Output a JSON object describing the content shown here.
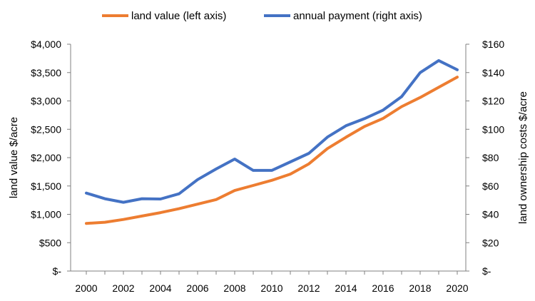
{
  "chart_data": {
    "type": "line",
    "x": [
      2000,
      2001,
      2002,
      2003,
      2004,
      2005,
      2006,
      2007,
      2008,
      2009,
      2010,
      2011,
      2012,
      2013,
      2014,
      2015,
      2016,
      2017,
      2018,
      2019,
      2020
    ],
    "xticks": [
      "2000",
      "2002",
      "2004",
      "2006",
      "2008",
      "2010",
      "2012",
      "2014",
      "2016",
      "2018",
      "2020"
    ],
    "xlim": [
      2000,
      2020
    ],
    "series": [
      {
        "name": "land value (left axis)",
        "axis": "left",
        "color": "#ED7D31",
        "values": [
          840,
          860,
          910,
          970,
          1030,
          1100,
          1180,
          1260,
          1420,
          1510,
          1600,
          1710,
          1890,
          2160,
          2360,
          2550,
          2690,
          2900,
          3060,
          3240,
          3420
        ]
      },
      {
        "name": "annual payment (right axis)",
        "axis": "right",
        "color": "#4472C4",
        "values": [
          55,
          51,
          48.5,
          51,
          50.8,
          54.5,
          64.5,
          72,
          79,
          71,
          71,
          77,
          83,
          94.5,
          102.5,
          107.5,
          113.5,
          123,
          140,
          148.5,
          142
        ]
      }
    ],
    "left_axis": {
      "label": "land value $/acre",
      "ylim": [
        0,
        4000
      ],
      "ticks": [
        0,
        500,
        1000,
        1500,
        2000,
        2500,
        3000,
        3500,
        4000
      ],
      "tick_labels": [
        "$-",
        "$500",
        "$1,000",
        "$1,500",
        "$2,000",
        "$2,500",
        "$3,000",
        "$3,500",
        "$4,000"
      ]
    },
    "right_axis": {
      "label": "land ownership costs $/acre",
      "ylim": [
        0,
        160
      ],
      "ticks": [
        0,
        20,
        40,
        60,
        80,
        100,
        120,
        140,
        160
      ],
      "tick_labels": [
        "$-",
        "$20",
        "$40",
        "$60",
        "$80",
        "$100",
        "$120",
        "$140",
        "$160"
      ]
    },
    "grid": false,
    "legend_position": "top-center"
  }
}
